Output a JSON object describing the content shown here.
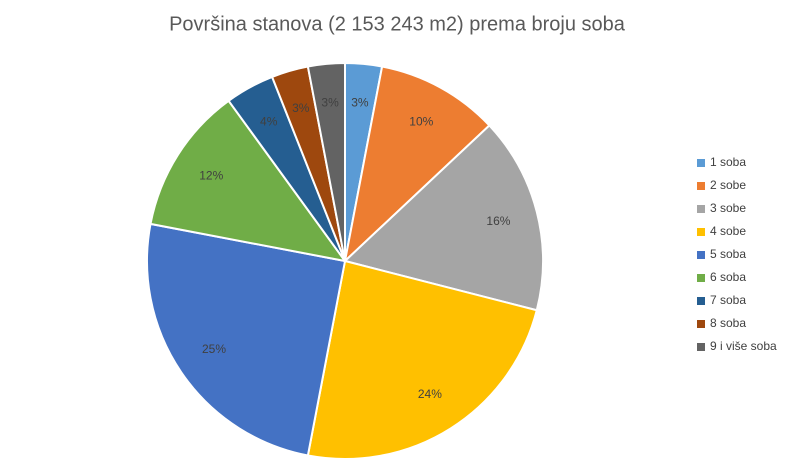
{
  "chart_data": {
    "type": "pie",
    "title": "Površina stanova (2 153 243 m2) prema broju soba",
    "categories": [
      "1 soba",
      "2 sobe",
      "3 sobe",
      "4 sobe",
      "5 soba",
      "6 soba",
      "7 soba",
      "8 soba",
      "9 i više soba"
    ],
    "values": [
      3,
      10,
      16,
      24,
      25,
      12,
      4,
      3,
      3
    ],
    "value_labels": [
      "3%",
      "10%",
      "16%",
      "24%",
      "25%",
      "12%",
      "4%",
      "3%",
      "3%"
    ],
    "colors": [
      "#5b9bd5",
      "#ed7d31",
      "#a5a5a5",
      "#ffc000",
      "#4472c4",
      "#70ad47",
      "#255e91",
      "#9e480e",
      "#636363"
    ],
    "legend": "right"
  }
}
